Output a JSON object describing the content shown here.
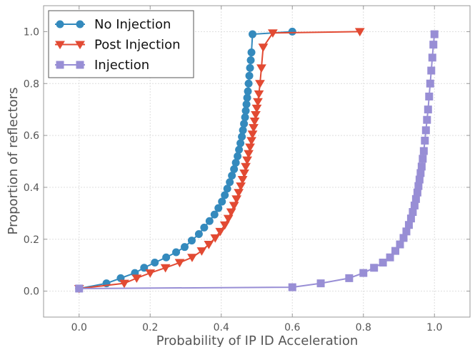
{
  "chart_data": {
    "type": "line",
    "xlabel": "Probability of IP ID Acceleration",
    "ylabel": "Proportion of reflectors",
    "xlim": [
      -0.1,
      1.1
    ],
    "ylim": [
      -0.1,
      1.1
    ],
    "xticks": [
      0.0,
      0.2,
      0.4,
      0.6,
      0.8,
      1.0
    ],
    "yticks": [
      0.0,
      0.2,
      0.4,
      0.6,
      0.8,
      1.0
    ],
    "xtick_labels": [
      "0.0",
      "0.2",
      "0.4",
      "0.6",
      "0.8",
      "1.0"
    ],
    "ytick_labels": [
      "0.0",
      "0.2",
      "0.4",
      "0.6",
      "0.8",
      "1.0"
    ],
    "grid": true,
    "legend_position": "top-left",
    "series": [
      {
        "name": "No Injection",
        "color": "#348abd",
        "marker": "circle",
        "x": [
          0.0,
          0.077,
          0.117,
          0.157,
          0.183,
          0.213,
          0.245,
          0.273,
          0.297,
          0.317,
          0.337,
          0.352,
          0.367,
          0.381,
          0.392,
          0.402,
          0.41,
          0.417,
          0.424,
          0.43,
          0.436,
          0.441,
          0.446,
          0.45,
          0.454,
          0.458,
          0.461,
          0.464,
          0.467,
          0.469,
          0.471,
          0.473,
          0.475,
          0.477,
          0.479,
          0.481,
          0.483,
          0.485,
          0.488,
          0.6
        ],
        "y": [
          0.01,
          0.03,
          0.05,
          0.07,
          0.09,
          0.11,
          0.13,
          0.15,
          0.17,
          0.195,
          0.22,
          0.245,
          0.27,
          0.295,
          0.32,
          0.345,
          0.37,
          0.395,
          0.42,
          0.445,
          0.47,
          0.495,
          0.52,
          0.545,
          0.57,
          0.595,
          0.62,
          0.645,
          0.67,
          0.695,
          0.72,
          0.745,
          0.77,
          0.8,
          0.83,
          0.86,
          0.89,
          0.92,
          0.99,
          1.0
        ]
      },
      {
        "name": "Post Injection",
        "color": "#e24a33",
        "marker": "triangle-down",
        "x": [
          0.0,
          0.127,
          0.162,
          0.2,
          0.243,
          0.283,
          0.318,
          0.345,
          0.365,
          0.383,
          0.397,
          0.41,
          0.42,
          0.428,
          0.436,
          0.443,
          0.449,
          0.455,
          0.46,
          0.465,
          0.469,
          0.473,
          0.477,
          0.481,
          0.485,
          0.488,
          0.491,
          0.494,
          0.497,
          0.5,
          0.503,
          0.506,
          0.509,
          0.513,
          0.518,
          0.545,
          0.79
        ],
        "y": [
          0.01,
          0.03,
          0.05,
          0.07,
          0.09,
          0.11,
          0.13,
          0.155,
          0.18,
          0.205,
          0.23,
          0.255,
          0.28,
          0.305,
          0.33,
          0.355,
          0.38,
          0.405,
          0.43,
          0.455,
          0.48,
          0.505,
          0.53,
          0.555,
          0.58,
          0.605,
          0.63,
          0.655,
          0.68,
          0.705,
          0.73,
          0.76,
          0.8,
          0.86,
          0.94,
          0.995,
          1.0
        ]
      },
      {
        "name": "Injection",
        "color": "#988ed5",
        "marker": "square",
        "x": [
          0.0,
          0.6,
          0.68,
          0.76,
          0.8,
          0.83,
          0.855,
          0.875,
          0.89,
          0.903,
          0.913,
          0.921,
          0.928,
          0.934,
          0.939,
          0.944,
          0.948,
          0.952,
          0.955,
          0.958,
          0.961,
          0.964,
          0.967,
          0.97,
          0.973,
          0.976,
          0.979,
          0.982,
          0.985,
          0.988,
          0.991,
          0.994,
          0.997,
          1.0
        ],
        "y": [
          0.01,
          0.015,
          0.03,
          0.05,
          0.07,
          0.09,
          0.11,
          0.13,
          0.155,
          0.18,
          0.205,
          0.23,
          0.255,
          0.28,
          0.305,
          0.33,
          0.355,
          0.38,
          0.405,
          0.43,
          0.455,
          0.48,
          0.51,
          0.54,
          0.58,
          0.62,
          0.66,
          0.7,
          0.75,
          0.8,
          0.85,
          0.9,
          0.95,
          0.99
        ]
      }
    ]
  }
}
